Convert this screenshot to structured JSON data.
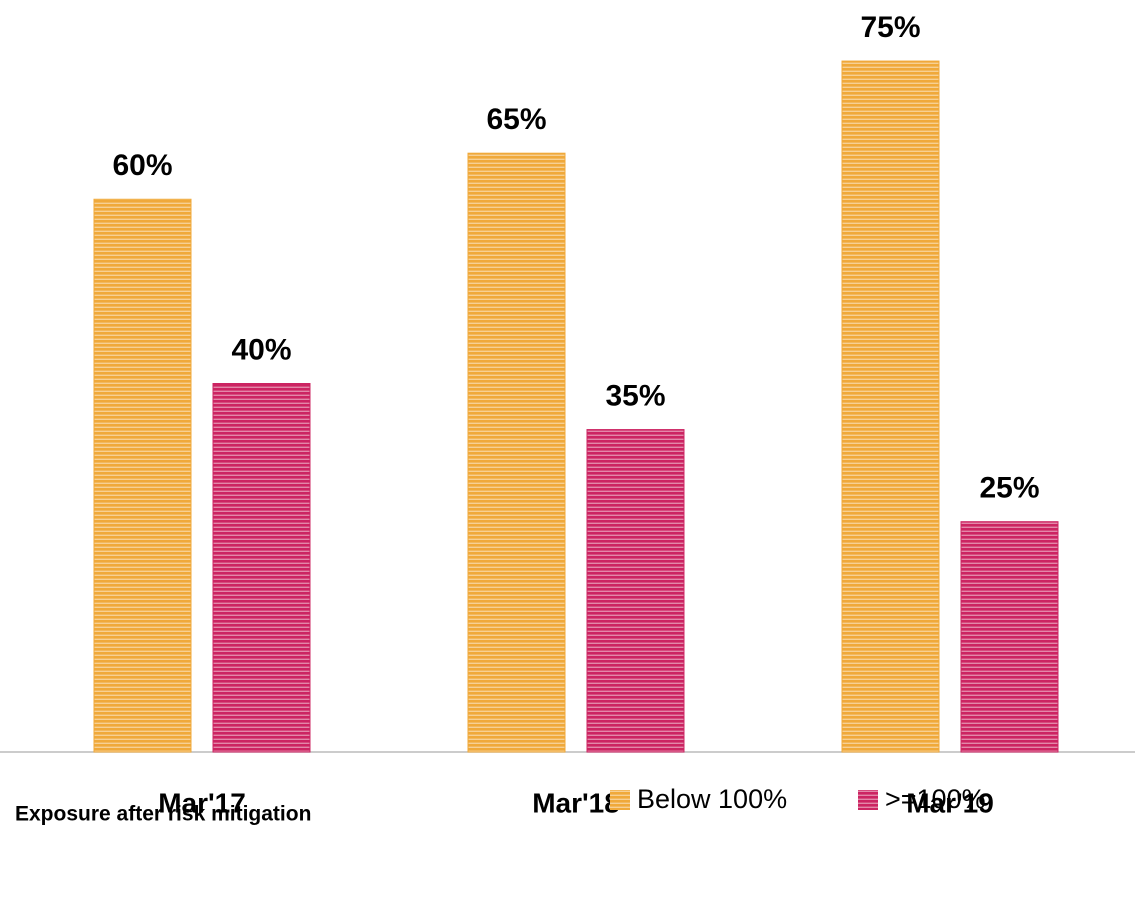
{
  "chart_data": {
    "type": "bar",
    "categories": [
      "Mar'17",
      "Mar'18",
      "Mar'19"
    ],
    "series": [
      {
        "name": "Below 100%",
        "color": "#f0a93a",
        "values": [
          60,
          65,
          75
        ],
        "value_labels": [
          "60%",
          "65%",
          "75%"
        ]
      },
      {
        "name": ">=100%",
        "color": "#cc2462",
        "values": [
          40,
          35,
          25
        ],
        "value_labels": [
          "40%",
          "35%",
          "25%"
        ]
      }
    ],
    "ylim": [
      0,
      80
    ],
    "legend": "bottom-right",
    "annotation": "Exposure after risk mitigation"
  }
}
